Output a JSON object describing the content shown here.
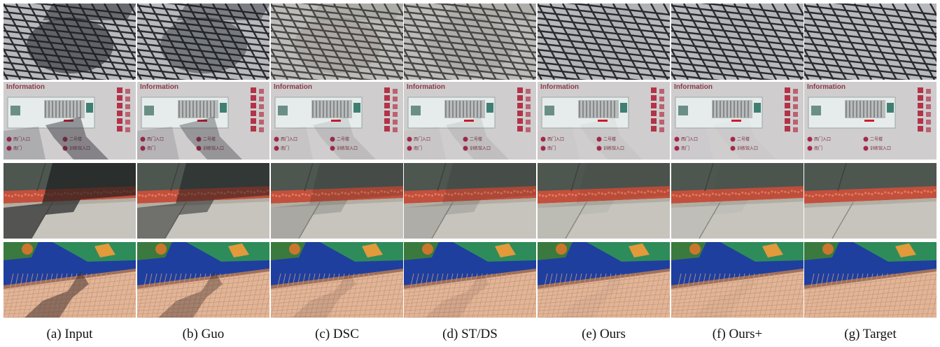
{
  "figure": {
    "columns": [
      {
        "key": "input",
        "caption": "(a) Input"
      },
      {
        "key": "guo",
        "caption": "(b) Guo"
      },
      {
        "key": "dsc",
        "caption": "(c) DSC"
      },
      {
        "key": "stds",
        "caption": "(d) ST/DS"
      },
      {
        "key": "ours",
        "caption": "(e) Ours"
      },
      {
        "key": "oursp",
        "caption": "(f) Ours+"
      },
      {
        "key": "target",
        "caption": "(g) Target"
      }
    ],
    "rows": [
      "grid-tiles",
      "information-sign",
      "pavement-curb",
      "mosaic-wall"
    ],
    "shadow_strength": {
      "input": 1.0,
      "guo": 0.75,
      "dsc": 0.25,
      "stds": 0.2,
      "ours": 0.08,
      "oursp": 0.05,
      "target": 0.0
    },
    "sign": {
      "heading": "Information",
      "legend": [
        "■ 西门入口",
        "■ 二号楼",
        "■ 南门",
        "■ 训练馆入口"
      ]
    }
  }
}
